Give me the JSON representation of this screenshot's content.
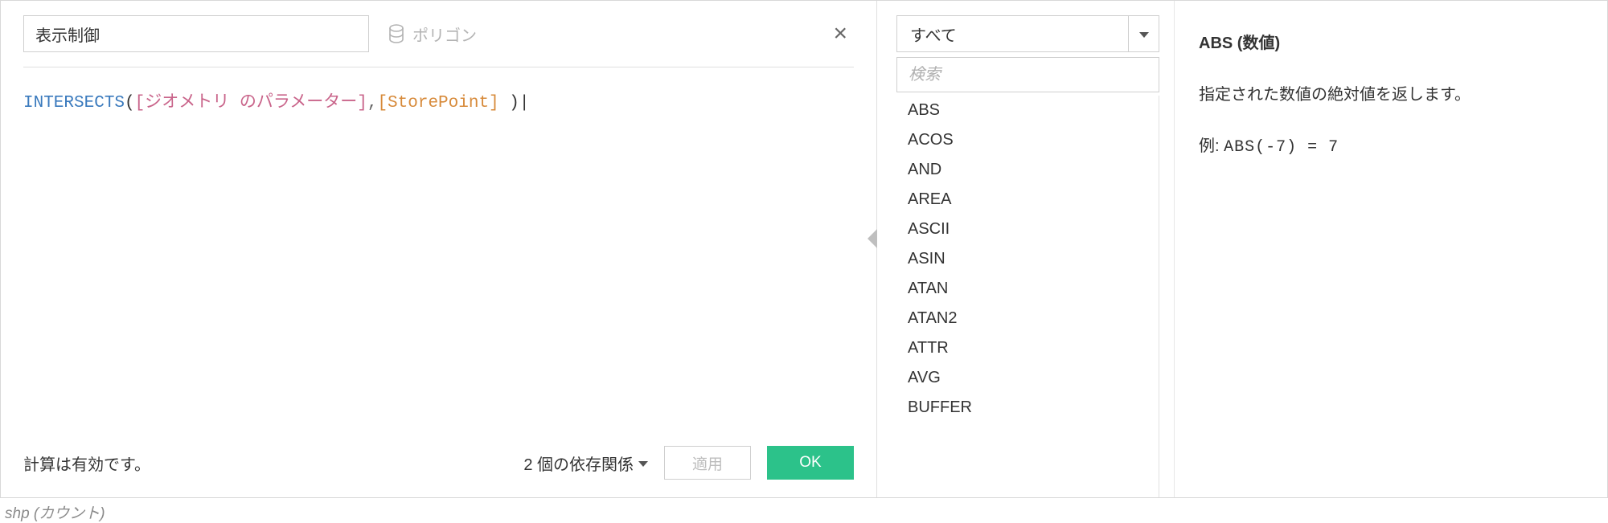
{
  "editor": {
    "calc_name": "表示制御",
    "datasource_label": "ポリゴン",
    "formula": {
      "func": "INTERSECTS",
      "field1": "[ジオメトリ のパラメーター]",
      "field2": "[StorePoint]"
    },
    "status_text": "計算は有効です。",
    "dependencies_text": "2 個の依存関係",
    "apply_label": "適用",
    "ok_label": "OK",
    "close_glyph": "×"
  },
  "functions": {
    "category_selected": "すべて",
    "search_placeholder": "検索",
    "list": [
      "ABS",
      "ACOS",
      "AND",
      "AREA",
      "ASCII",
      "ASIN",
      "ATAN",
      "ATAN2",
      "ATTR",
      "AVG",
      "BUFFER"
    ]
  },
  "help": {
    "signature": "ABS (数値)",
    "description": "指定された数値の絶対値を返します。",
    "example_label": "例:",
    "example_code": "ABS(-7) = 7"
  },
  "below": {
    "fragment": "shp (カウント)"
  },
  "colors": {
    "func": "#3a7abd",
    "field1": "#c9648a",
    "field2": "#d78a3a",
    "ok_bg": "#2cc28a",
    "border": "#cfcfcf",
    "muted": "#b3b3b3"
  }
}
